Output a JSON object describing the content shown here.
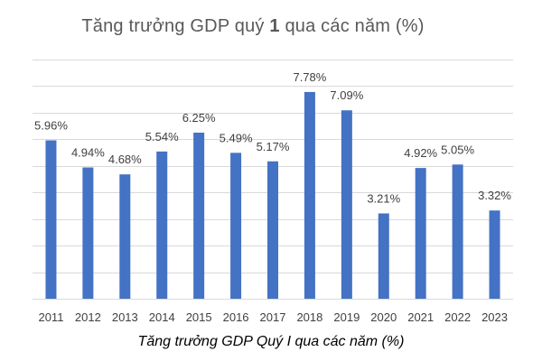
{
  "title": {
    "prefix": "Tăng trưởng GDP quý ",
    "number": "1",
    "suffix": " qua các năm (%)"
  },
  "caption": "Tăng trưởng GDP Quý I qua các năm (%)",
  "colors": {
    "bar": "#4472C4",
    "grid": "#D9D9D9",
    "label": "#404040"
  },
  "chart_data": {
    "type": "bar",
    "title": "Tăng trưởng GDP quý 1 qua các năm (%)",
    "xlabel": "",
    "ylabel": "",
    "ylim": [
      0,
      9
    ],
    "grid": true,
    "categories": [
      "2011",
      "2012",
      "2013",
      "2014",
      "2015",
      "2016",
      "2017",
      "2018",
      "2019",
      "2020",
      "2021",
      "2022",
      "2023"
    ],
    "values": [
      5.96,
      4.94,
      4.68,
      5.54,
      6.25,
      5.49,
      5.17,
      7.78,
      7.09,
      3.21,
      4.92,
      5.05,
      3.32
    ],
    "data_labels": [
      "5.96%",
      "4.94%",
      "4.68%",
      "5.54%",
      "6.25%",
      "5.49%",
      "5.17%",
      "7.78%",
      "7.09%",
      "3.21%",
      "4.92%",
      "5.05%",
      "3.32%"
    ]
  }
}
